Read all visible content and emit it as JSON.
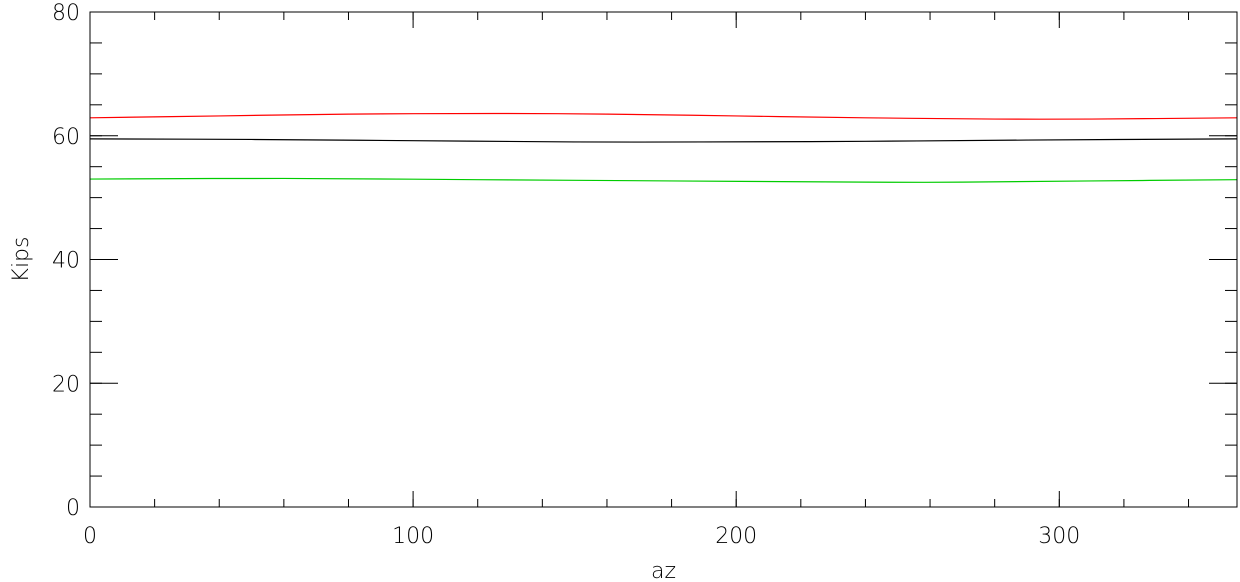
{
  "chart_data": {
    "type": "line",
    "title": "",
    "xlabel": "az",
    "ylabel": "Kips",
    "xlim": [
      0,
      355
    ],
    "ylim": [
      0,
      80
    ],
    "x_ticks": [
      0,
      100,
      200,
      300
    ],
    "x_tick_labels": [
      "0",
      "100",
      "200",
      "300"
    ],
    "x_minor_step": 20,
    "y_ticks": [
      0,
      20,
      40,
      60,
      80
    ],
    "y_tick_labels": [
      "0",
      "20",
      "40",
      "60",
      "80"
    ],
    "y_minor_step": 5,
    "grid": false,
    "series": [
      {
        "color": "#ff0000",
        "x": [
          0,
          40,
          80,
          125,
          160,
          200,
          240,
          280,
          310,
          355
        ],
        "y": [
          62.9,
          63.2,
          63.5,
          63.6,
          63.5,
          63.2,
          62.9,
          62.7,
          62.7,
          62.9
        ]
      },
      {
        "color": "#000000",
        "x": [
          0,
          50,
          100,
          150,
          190,
          240,
          290,
          355
        ],
        "y": [
          59.5,
          59.4,
          59.2,
          59.0,
          59.0,
          59.1,
          59.3,
          59.5
        ]
      },
      {
        "color": "#00cc00",
        "x": [
          0,
          60,
          120,
          180,
          240,
          270,
          310,
          355
        ],
        "y": [
          53.0,
          53.1,
          52.9,
          52.7,
          52.5,
          52.5,
          52.7,
          52.9
        ]
      }
    ]
  }
}
